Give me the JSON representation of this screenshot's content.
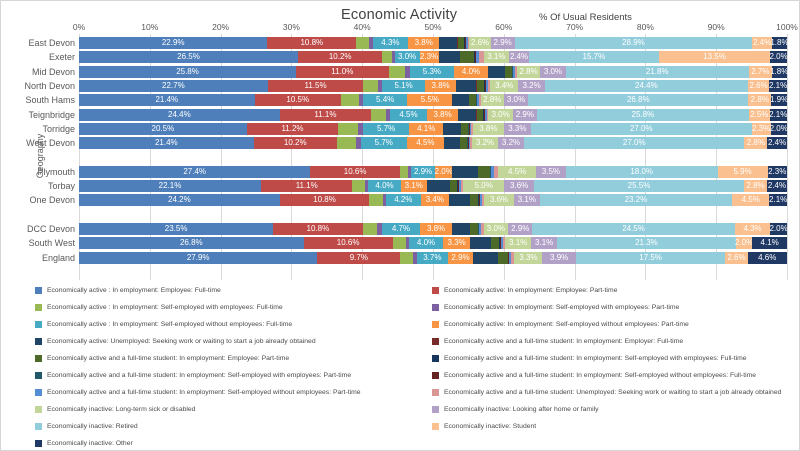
{
  "title": "Economic Activity",
  "axis_note": "% Of Usual Residents",
  "chart_data": {
    "type": "bar",
    "variant": "horizontal-100pct-stacked",
    "title": "Economic Activity",
    "subtitle": "% Of Usual Residents",
    "ylabel": "Geography",
    "grid": "vertical-light",
    "legend_position": "bottom-two-columns",
    "x_ticks": [
      "0%",
      "10%",
      "20%",
      "30%",
      "40%",
      "50%",
      "60%",
      "70%",
      "80%",
      "90%",
      "100%"
    ],
    "label_rule": {
      "series": [
        0,
        1,
        4,
        5,
        14,
        15,
        16,
        17,
        18
      ],
      "min": 1.8
    },
    "series": [
      {
        "label": "Economically active : In employment: Employee: Full-time",
        "color": "#4E7FBA"
      },
      {
        "label": "Economically active: In employment: Employee: Part-time",
        "color": "#BE4B48"
      },
      {
        "label": "Economically active : In employment: Self-employed with employees: Full-time",
        "color": "#98B954"
      },
      {
        "label": "Economically active: In employment: Self-employed with employees: Part-time",
        "color": "#7D60A0"
      },
      {
        "label": "Economically active : In employment: Self-employed without employees: Full-time",
        "color": "#46AAC5"
      },
      {
        "label": "Economically active: In employment: Self-employed without employees: Part-time",
        "color": "#F79545"
      },
      {
        "label": "Economically active: Unemployed: Seeking work or waiting to start a job already obtained",
        "color": "#1F4466"
      },
      {
        "label": "Economically active and a full-time student: In employment: Employer: Full-time",
        "color": "#772C2A"
      },
      {
        "label": "Economically active and a full-time student: In employment: Employee: Part-time",
        "color": "#4E6A28"
      },
      {
        "label": "Economically active and a full-time student: In employment: Self-employed with employees: Full-time",
        "color": "#17365D"
      },
      {
        "label": "Economically active and a full-time student: In employment: Self-employed with employees: Part-time",
        "color": "#215968"
      },
      {
        "label": "Economically active and a full-time student: In employment: Self-employed without employees: Full-time",
        "color": "#632423"
      },
      {
        "label": "Economically active and a full-time student: In employment: Self-employed without employees: Part-time",
        "color": "#558ED5"
      },
      {
        "label": "Economically active and a full-time student: Unemployed: Seeking work or waiting to start a job already obtained",
        "color": "#D99694"
      },
      {
        "label": "Economically inactive: Long-term sick or disabled",
        "color": "#C2D69A"
      },
      {
        "label": "Economically inactive: Looking after home or family",
        "color": "#B2A1C7"
      },
      {
        "label": "Economically inactive: Retired",
        "color": "#92CDDC"
      },
      {
        "label": "Economically inactive: Student",
        "color": "#FAC08F"
      },
      {
        "label": "Economically inactive: Other",
        "color": "#1F3864"
      }
    ],
    "legend_left_indices": [
      0,
      2,
      4,
      6,
      8,
      10,
      12,
      14,
      16,
      18
    ],
    "legend_right_indices": [
      1,
      3,
      5,
      7,
      9,
      11,
      13,
      15,
      17
    ],
    "groups": [
      {
        "rows": [
          {
            "name": "East Devon",
            "values": [
              22.9,
              10.8,
              1.6,
              0.4,
              4.3,
              3.8,
              2.2,
              0.05,
              0.8,
              0.05,
              0.05,
              0.1,
              0.2,
              0.2,
              2.6,
              2.9,
              28.9,
              2.4,
              1.8
            ]
          },
          {
            "name": "Exeter",
            "values": [
              26.5,
              10.2,
              1.2,
              0.3,
              3.0,
              2.3,
              2.6,
              0.05,
              1.7,
              0.05,
              0.05,
              0.1,
              0.3,
              0.6,
              3.1,
              2.4,
              15.7,
              13.5,
              2.0
            ]
          },
          {
            "name": "Mid Devon",
            "values": [
              25.8,
              11.0,
              2.0,
              0.5,
              5.3,
              4.0,
              2.0,
              0.05,
              0.8,
              0.05,
              0.05,
              0.1,
              0.2,
              0.2,
              2.8,
              3.0,
              21.8,
              2.7,
              1.8
            ]
          },
          {
            "name": "North Devon",
            "values": [
              22.7,
              11.5,
              1.8,
              0.5,
              5.1,
              3.8,
              2.4,
              0.05,
              0.9,
              0.05,
              0.05,
              0.1,
              0.2,
              0.3,
              3.4,
              3.2,
              24.4,
              2.6,
              2.1
            ]
          },
          {
            "name": "South Hams",
            "values": [
              21.4,
              10.5,
              2.2,
              0.5,
              5.4,
              5.5,
              2.0,
              0.05,
              0.8,
              0.05,
              0.05,
              0.1,
              0.2,
              0.2,
              2.8,
              3.0,
              26.8,
              2.8,
              1.9
            ]
          },
          {
            "name": "Teignbridge",
            "values": [
              24.4,
              11.1,
              1.8,
              0.5,
              4.5,
              3.8,
              2.2,
              0.05,
              0.8,
              0.05,
              0.05,
              0.1,
              0.2,
              0.2,
              3.0,
              2.9,
              25.8,
              2.5,
              2.1
            ]
          },
          {
            "name": "Torridge",
            "values": [
              20.5,
              11.2,
              2.4,
              0.6,
              5.7,
              4.1,
              2.2,
              0.05,
              0.8,
              0.05,
              0.05,
              0.1,
              0.2,
              0.2,
              3.8,
              3.3,
              27.0,
              2.3,
              2.0
            ]
          },
          {
            "name": "West Devon",
            "values": [
              21.4,
              10.2,
              2.3,
              0.6,
              5.7,
              4.5,
              2.0,
              0.05,
              0.8,
              0.05,
              0.05,
              0.1,
              0.2,
              0.2,
              3.2,
              3.2,
              27.0,
              2.8,
              2.4
            ]
          }
        ]
      },
      {
        "rows": [
          {
            "name": "Plymouth",
            "values": [
              27.4,
              10.6,
              1.0,
              0.3,
              2.9,
              2.0,
              3.0,
              0.05,
              1.4,
              0.05,
              0.05,
              0.1,
              0.3,
              0.5,
              4.5,
              3.5,
              18.0,
              5.9,
              2.3
            ]
          },
          {
            "name": "Torbay",
            "values": [
              22.1,
              11.1,
              1.5,
              0.4,
              4.0,
              3.1,
              2.8,
              0.05,
              0.9,
              0.05,
              0.05,
              0.1,
              0.2,
              0.3,
              5.0,
              3.6,
              25.5,
              2.8,
              2.4
            ]
          },
          {
            "name": "One Devon",
            "values": [
              24.2,
              10.8,
              1.6,
              0.4,
              4.2,
              3.4,
              2.5,
              0.05,
              1.0,
              0.05,
              0.05,
              0.1,
              0.2,
              0.3,
              3.6,
              3.1,
              23.2,
              4.5,
              2.1
            ]
          }
        ]
      },
      {
        "rows": [
          {
            "name": "DCC Devon",
            "values": [
              23.5,
              10.8,
              1.8,
              0.5,
              4.7,
              3.8,
              2.2,
              0.05,
              0.9,
              0.05,
              0.05,
              0.1,
              0.2,
              0.3,
              3.0,
              2.9,
              24.5,
              4.3,
              2.0
            ]
          },
          {
            "name": "South West",
            "values": [
              26.8,
              10.6,
              1.6,
              0.4,
              4.0,
              3.3,
              2.4,
              0.05,
              1.0,
              0.05,
              0.05,
              0.1,
              0.2,
              0.3,
              3.1,
              3.1,
              21.3,
              2.0,
              4.1
            ]
          },
          {
            "name": "England",
            "values": [
              27.9,
              9.7,
              1.5,
              0.4,
              3.7,
              2.9,
              2.9,
              0.05,
              1.1,
              0.05,
              0.05,
              0.1,
              0.2,
              0.4,
              3.3,
              3.9,
              17.5,
              2.6,
              4.6
            ]
          }
        ]
      }
    ]
  }
}
